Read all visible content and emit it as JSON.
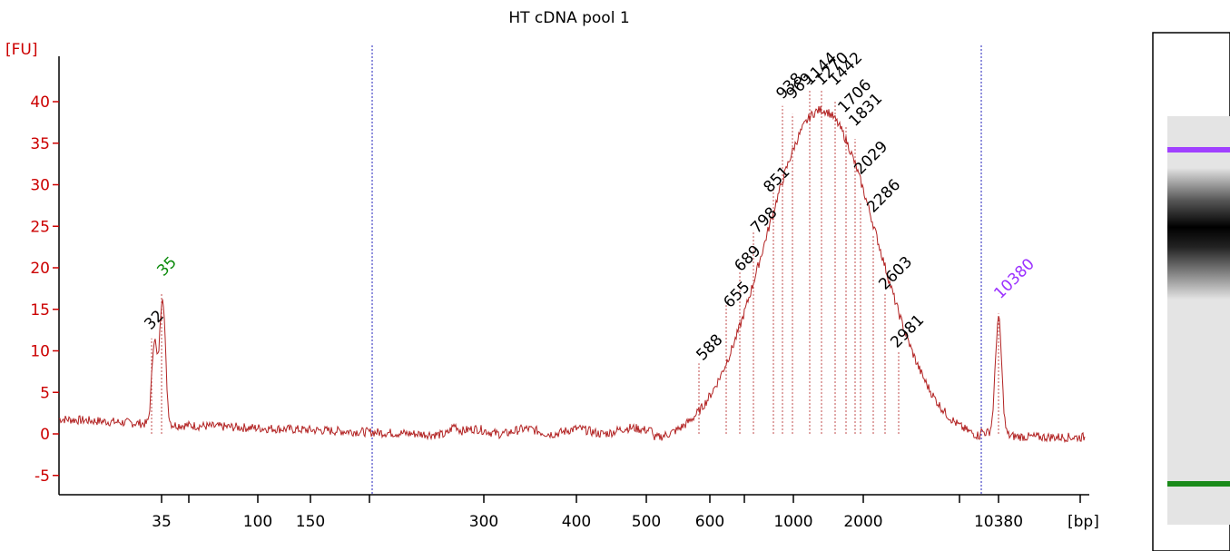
{
  "chart_data": {
    "type": "line",
    "title": "HT cDNA pool 1",
    "ylabel": "[FU]",
    "xlabel": "[bp]",
    "ylim": [
      -7,
      45
    ],
    "yticks": [
      -5,
      0,
      5,
      10,
      15,
      20,
      25,
      30,
      35,
      40
    ],
    "xticks": [
      "35",
      "100",
      "150",
      "300",
      "400",
      "500",
      "600",
      "1000",
      "2000",
      "10380"
    ],
    "x_scale": "nonlinear (ladder-calibrated)",
    "marker_labels": [
      {
        "label": "35",
        "color": "#0a8a0a"
      },
      {
        "label": "10380",
        "color": "#9b30ff"
      }
    ],
    "peak_labels": [
      "32",
      "588",
      "655",
      "689",
      "798",
      "851",
      "938",
      "969",
      "1144",
      "1270",
      "1442",
      "1706",
      "1831",
      "2029",
      "2286",
      "2603",
      "2981"
    ],
    "series": [
      {
        "color": "#b22222",
        "x": [
          "32",
          "35",
          "588",
          "655",
          "689",
          "798",
          "851",
          "938",
          "969",
          "1144",
          "1270",
          "1442",
          "1706",
          "1831",
          "2029",
          "2286",
          "2603",
          "2981",
          "10380"
        ],
        "y": [
          11.5,
          17,
          8.5,
          15.5,
          19.5,
          24.5,
          30,
          39.5,
          38.5,
          41.5,
          41.5,
          40,
          37,
          35.5,
          28,
          24,
          17,
          10,
          14.5
        ]
      }
    ],
    "gel_lane": {
      "band_colors": [
        "#a040ff",
        "#1a8a1a"
      ]
    }
  }
}
